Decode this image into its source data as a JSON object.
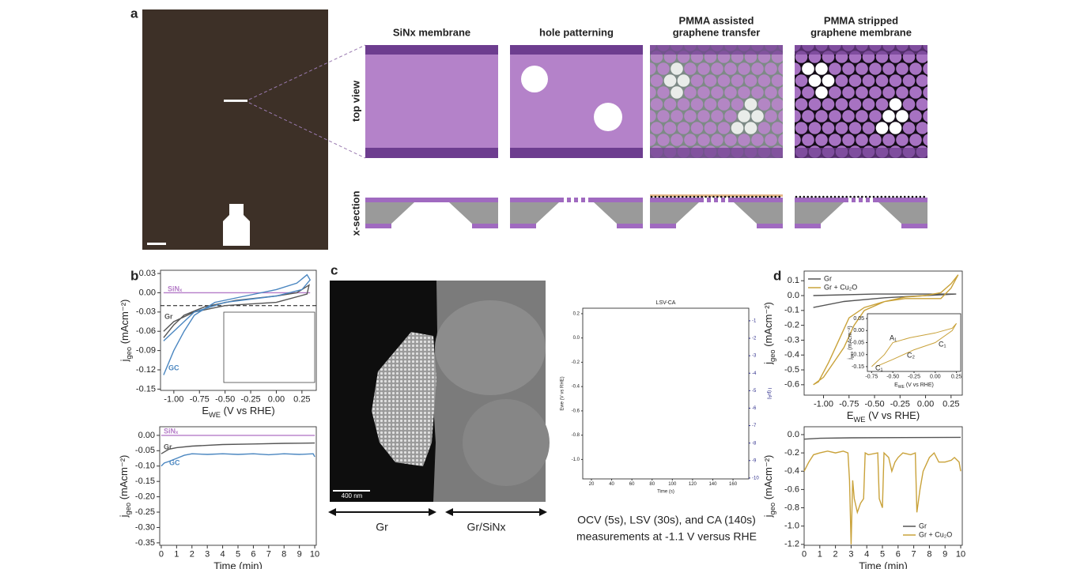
{
  "figure": {
    "panel_labels": [
      "a",
      "b",
      "c",
      "d"
    ],
    "schematic": {
      "headers": [
        [
          "SiNx membrane"
        ],
        [
          "hole patterning"
        ],
        [
          "PMMA assisted",
          "graphene transfer"
        ],
        [
          "PMMA stripped",
          "graphene membrane"
        ]
      ],
      "row_labels": [
        "top view",
        "x-section"
      ]
    },
    "sem": {
      "scale_bar": "400 nm",
      "regions": [
        "Gr",
        "Gr/SiNx"
      ]
    },
    "caption": [
      "OCV (5s), LSV (30s), and CA (140s)",
      "measurements at -1.1 V versus RHE"
    ]
  },
  "chart_data": [
    {
      "type": "line",
      "xlabel": [
        "E",
        "WE",
        " (V vs RHE)"
      ],
      "ylabel": [
        "j",
        "geo",
        " (mAcm⁻²)"
      ],
      "xlim": [
        -1.13,
        0.39
      ],
      "ylim": [
        -0.152,
        0.035
      ],
      "xticks": [
        {
          "value": -1,
          "label": "-1.00"
        },
        -0.75,
        {
          "value": -0.5,
          "label": "-0.50"
        },
        -0.25,
        {
          "value": 0,
          "label": "0.00"
        },
        0.25
      ],
      "yticks": [
        0.03,
        {
          "value": 0,
          "label": "0.00"
        },
        -0.03,
        -0.06,
        -0.09,
        -0.12,
        -0.15
      ],
      "hline": -0.02,
      "legend": "inline",
      "series": [
        {
          "name": "SiNₓ",
          "color": "#b57cc8",
          "x": [
            -1.1,
            0.33
          ],
          "values": [
            0,
            0
          ]
        },
        {
          "name": "Gr",
          "color": "#555555",
          "x": [
            -1.1,
            -1.0,
            -0.9,
            -0.7,
            -0.4,
            0,
            0.2,
            0.32,
            0.3,
            0,
            -0.5,
            -0.8,
            -1.0,
            -1.1
          ],
          "values": [
            -0.07,
            -0.05,
            -0.035,
            -0.022,
            -0.012,
            -0.005,
            0,
            0.012,
            -0.002,
            -0.015,
            -0.02,
            -0.03,
            -0.045,
            -0.06
          ]
        },
        {
          "name": "GC",
          "color": "#4a86c0",
          "x": [
            -1.1,
            -1.0,
            -0.9,
            -0.8,
            -0.6,
            -0.3,
            0,
            0.2,
            0.3,
            0.33,
            0.25,
            0,
            -0.5,
            -0.8,
            -1.0,
            -1.1
          ],
          "values": [
            -0.128,
            -0.09,
            -0.06,
            -0.035,
            -0.015,
            -0.005,
            0.005,
            0.015,
            0.028,
            0.02,
            0.005,
            -0.005,
            -0.015,
            -0.03,
            -0.06,
            -0.075
          ]
        }
      ]
    },
    {
      "type": "line",
      "xlabel": "Time (min)",
      "ylabel": [
        "j",
        "geo",
        " (mAcm⁻²)"
      ],
      "xlim": [
        -0.1,
        10.1
      ],
      "ylim": [
        -0.358,
        0.028
      ],
      "xticks": [
        0,
        1,
        2,
        3,
        4,
        5,
        6,
        7,
        8,
        9,
        10
      ],
      "yticks": [
        {
          "value": 0,
          "label": "0.00"
        },
        -0.05,
        {
          "value": -0.1,
          "label": "-0.10"
        },
        -0.15,
        {
          "value": -0.2,
          "label": "-0.20"
        },
        -0.25,
        {
          "value": -0.3,
          "label": "-0.30"
        },
        -0.35
      ],
      "legend": "inline",
      "series": [
        {
          "name": "SiNₓ",
          "color": "#b57cc8",
          "x": [
            0,
            10
          ],
          "values": [
            0,
            0
          ]
        },
        {
          "name": "Gr",
          "color": "#555555",
          "x": [
            0,
            0.5,
            1,
            2,
            4,
            6,
            8,
            10
          ],
          "values": [
            -0.06,
            -0.045,
            -0.04,
            -0.035,
            -0.03,
            -0.028,
            -0.026,
            -0.025
          ]
        },
        {
          "name": "GC",
          "color": "#4a86c0",
          "x": [
            0,
            0.2,
            0.5,
            1,
            1.5,
            2,
            3,
            4,
            5,
            6,
            7,
            8,
            9,
            9.9,
            10
          ],
          "values": [
            -0.1,
            -0.09,
            -0.085,
            -0.075,
            -0.065,
            -0.06,
            -0.062,
            -0.06,
            -0.062,
            -0.06,
            -0.063,
            -0.06,
            -0.062,
            -0.06,
            -0.07
          ]
        }
      ]
    },
    {
      "type": "line",
      "title": "LSV-CA",
      "xlabel": "Time (s)",
      "ylabel": "Ewe (V vs RHE)",
      "y2label": "I (µA)",
      "xlim": [
        11.4,
        175.6
      ],
      "ylim": [
        -1.16,
        0.245
      ],
      "y2lim": [
        -10.05,
        -0.28
      ],
      "xticks": [
        20,
        40,
        60,
        80,
        100,
        120,
        140,
        160
      ],
      "yticks": [
        0.2,
        {
          "value": 0,
          "label": "0.0"
        },
        -0.2,
        -0.4,
        -0.6,
        -0.8,
        {
          "value": -1,
          "label": "-1.0"
        }
      ],
      "y2ticks": [
        -1,
        -2,
        -3,
        -4,
        -5,
        -6,
        -7,
        -8,
        -9,
        -10
      ],
      "y2color": "#2b2b8a",
      "series": []
    },
    {
      "type": "line",
      "xlabel": [
        "E",
        "WE",
        " (V vs RHE)"
      ],
      "ylabel": [
        "j",
        "geo",
        " (mAcm⁻²)"
      ],
      "xlim": [
        -1.19,
        0.36
      ],
      "ylim": [
        -0.67,
        0.165
      ],
      "xticks": [
        {
          "value": -1,
          "label": "-1.00"
        },
        -0.75,
        {
          "value": -0.5,
          "label": "-0.50"
        },
        -0.25,
        {
          "value": 0,
          "label": "0.00"
        },
        0.25
      ],
      "yticks": [
        0.1,
        {
          "value": 0,
          "label": "0.0"
        },
        -0.1,
        -0.2,
        -0.3,
        -0.4,
        -0.5,
        -0.6
      ],
      "legend": "upper left",
      "series": [
        {
          "name": "Gr",
          "color": "#555555",
          "x": [
            -1.1,
            -0.8,
            -0.4,
            0,
            0.3,
            0,
            -0.5,
            -1.1
          ],
          "values": [
            -0.08,
            -0.04,
            -0.015,
            0,
            0.01,
            0.01,
            0.01,
            0.0
          ]
        },
        {
          "name": "Gr + Cu₂O",
          "color": "#c9a23a",
          "x": [
            -1.1,
            -1.0,
            -0.9,
            -0.8,
            -0.7,
            -0.6,
            -0.4,
            -0.2,
            0,
            0.15,
            0.25,
            0.32,
            0.25,
            0.15,
            0,
            -0.2,
            -0.4,
            -0.6,
            -0.75,
            -0.85,
            -0.95,
            -1.05,
            -1.1
          ],
          "values": [
            -0.6,
            -0.55,
            -0.45,
            -0.35,
            -0.2,
            -0.1,
            -0.04,
            -0.01,
            0,
            0.02,
            0.08,
            0.14,
            0.05,
            -0.02,
            -0.02,
            -0.02,
            -0.04,
            -0.08,
            -0.15,
            -0.3,
            -0.45,
            -0.58,
            -0.6
          ]
        }
      ]
    },
    {
      "type": "line",
      "xlabel": [
        "E",
        "WE",
        " (V vs RHE)"
      ],
      "ylabel": [
        "j",
        "geo",
        " (mAcm⁻²)"
      ],
      "xlim": [
        -0.8,
        0.3
      ],
      "ylim": [
        -0.17,
        0.07
      ],
      "xticks": [
        -0.75,
        {
          "value": -0.5,
          "label": "-0.50"
        },
        -0.25,
        {
          "value": 0,
          "label": "0.00"
        },
        0.25
      ],
      "yticks": [
        0.05,
        {
          "value": 0,
          "label": "0.00"
        },
        -0.05,
        {
          "value": -0.1,
          "label": "-0.10"
        },
        -0.15
      ],
      "annotations": [
        "A₁",
        "C₂",
        "C₁",
        "C₁"
      ],
      "series": [
        {
          "color": "#c9a23a",
          "x": [
            -0.75,
            -0.6,
            -0.5,
            -0.3,
            0,
            0.2,
            0.25,
            0.2,
            0,
            -0.25,
            -0.5,
            -0.7
          ],
          "values": [
            -0.15,
            -0.1,
            -0.05,
            -0.03,
            -0.01,
            0.01,
            0.03,
            0,
            -0.05,
            -0.08,
            -0.12,
            -0.15
          ]
        }
      ]
    },
    {
      "type": "line",
      "xlabel": "Time (min)",
      "ylabel": [
        "j",
        "geo",
        " (mAcm⁻²)"
      ],
      "xlim": [
        0,
        10.1
      ],
      "ylim": [
        -1.21,
        0.086
      ],
      "xticks": [
        0,
        1,
        2,
        3,
        4,
        5,
        6,
        7,
        8,
        9,
        10
      ],
      "yticks": [
        {
          "value": 0,
          "label": "0.0"
        },
        -0.2,
        -0.4,
        -0.6,
        -0.8,
        {
          "value": -1,
          "label": "-1.0"
        },
        -1.2
      ],
      "legend": "lower right",
      "series": [
        {
          "name": "Gr",
          "color": "#555555",
          "x": [
            0,
            1,
            3,
            10
          ],
          "values": [
            -0.05,
            -0.04,
            -0.035,
            -0.03
          ]
        },
        {
          "name": "Gr + Cu₂O",
          "color": "#c9a23a",
          "x": [
            0,
            0.3,
            0.6,
            1,
            1.5,
            2,
            2.5,
            2.8,
            2.9,
            3,
            3.1,
            3.2,
            3.4,
            3.6,
            3.8,
            3.9,
            4.1,
            4.7,
            4.8,
            5,
            5.1,
            5.4,
            5.6,
            5.8,
            6,
            6.3,
            6.8,
            7.1,
            7.2,
            7.4,
            7.6,
            8,
            8.3,
            8.6,
            9,
            9.4,
            9.6,
            9.9,
            10
          ],
          "values": [
            -0.4,
            -0.3,
            -0.22,
            -0.2,
            -0.18,
            -0.2,
            -0.18,
            -0.2,
            -0.5,
            -1.2,
            -0.5,
            -0.7,
            -0.85,
            -0.75,
            -0.7,
            -0.2,
            -0.22,
            -0.2,
            -0.7,
            -0.8,
            -0.2,
            -0.25,
            -0.4,
            -0.3,
            -0.25,
            -0.2,
            -0.22,
            -0.2,
            -0.85,
            -0.6,
            -0.4,
            -0.25,
            -0.2,
            -0.3,
            -0.3,
            -0.28,
            -0.25,
            -0.3,
            -0.4
          ]
        }
      ]
    }
  ]
}
